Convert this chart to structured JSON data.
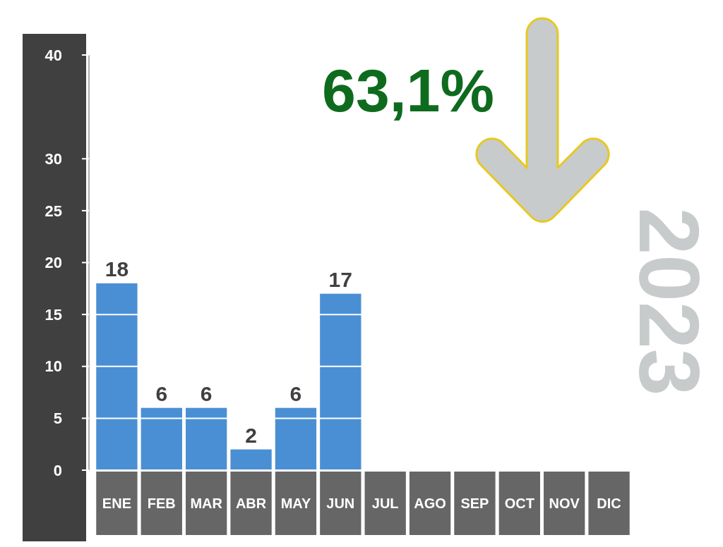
{
  "chart_data": {
    "type": "bar",
    "categories": [
      "ENE",
      "FEB",
      "MAR",
      "ABR",
      "MAY",
      "JUN",
      "JUL",
      "AGO",
      "SEP",
      "OCT",
      "NOV",
      "DIC"
    ],
    "values": [
      18,
      6,
      6,
      2,
      6,
      17,
      null,
      null,
      null,
      null,
      null,
      null
    ],
    "color": "#4a8fd4",
    "data_labels": true,
    "ylim": [
      0,
      40
    ],
    "yticks": [
      0,
      5,
      10,
      15,
      20,
      25,
      30,
      40
    ],
    "grid": "y",
    "annotations": [
      "63,1%",
      "2023"
    ]
  }
}
